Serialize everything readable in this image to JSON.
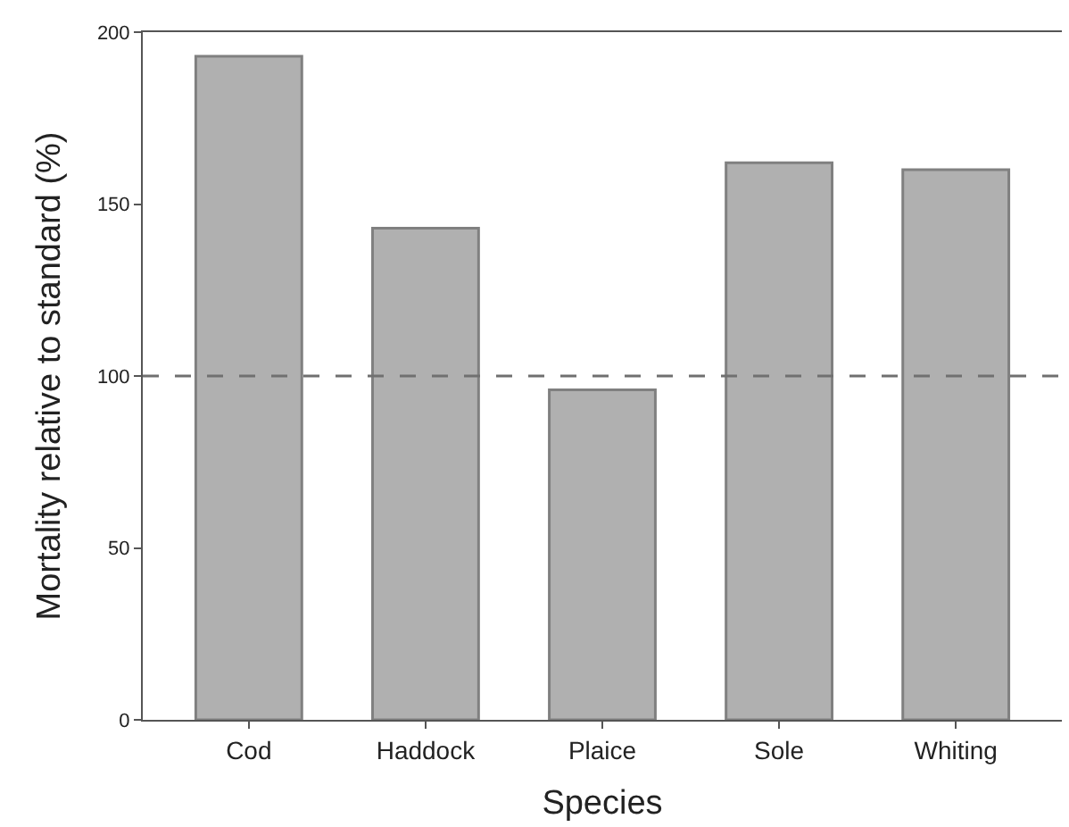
{
  "chart_data": {
    "type": "bar",
    "xlabel": "Species",
    "ylabel": "Mortality relative to standard (%)",
    "categories": [
      "Cod",
      "Haddock",
      "Plaice",
      "Sole",
      "Whiting"
    ],
    "values": [
      193,
      143,
      96,
      162,
      160
    ],
    "color": "#b0b0b0",
    "ylim": [
      0,
      200
    ],
    "yticks": [
      0,
      50,
      100,
      150,
      200
    ],
    "ref_lines": [
      {
        "axis": "y",
        "value": 100,
        "color": "#707070",
        "line_style": "dashed"
      }
    ]
  }
}
